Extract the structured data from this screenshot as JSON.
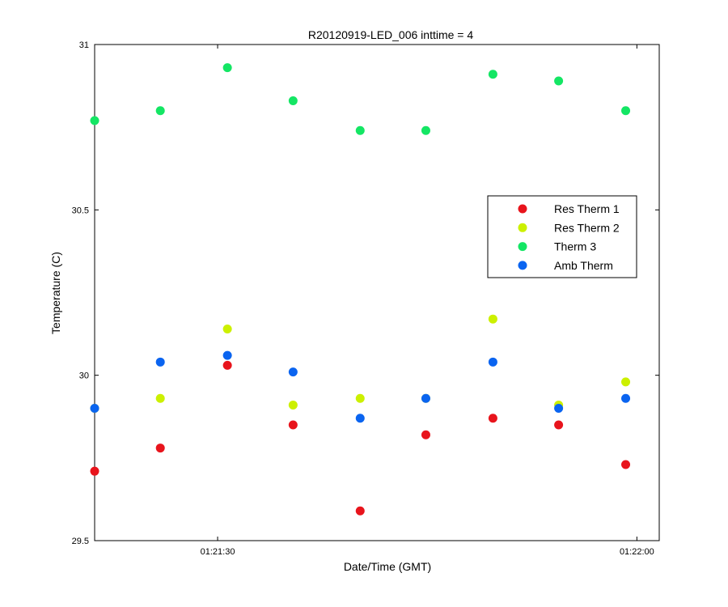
{
  "chart_data": {
    "type": "scatter",
    "title": "R20120919-LED_006 inttime = 4",
    "xlabel": "Date/Time (GMT)",
    "ylabel": "Temperature (C)",
    "xlim": [
      "01:21:21.2",
      "01:22:01.6"
    ],
    "ylim": [
      29.5,
      31
    ],
    "x_ticks": [
      {
        "value": "01:21:30",
        "label": "01:21:30"
      },
      {
        "value": "01:22:00",
        "label": "01:22:00"
      }
    ],
    "y_ticks": [
      {
        "value": 29.5,
        "label": "29.5"
      },
      {
        "value": 30,
        "label": "30"
      },
      {
        "value": 30.5,
        "label": "30.5"
      },
      {
        "value": 31,
        "label": "31"
      }
    ],
    "x": [
      "01:21:21.2",
      "01:21:25.9",
      "01:21:30.7",
      "01:21:35.4",
      "01:21:40.2",
      "01:21:44.9",
      "01:21:49.7",
      "01:21:54.4",
      "01:21:59.2",
      "01:21:60.0"
    ],
    "series": [
      {
        "name": "Res Therm 1",
        "color": "#e8141c",
        "values": [
          29.71,
          29.78,
          30.03,
          29.85,
          29.59,
          29.82,
          29.87,
          29.85,
          29.73,
          null
        ]
      },
      {
        "name": "Res Therm 2",
        "color": "#ccf000",
        "values": [
          29.9,
          29.93,
          30.14,
          29.91,
          29.93,
          29.93,
          30.17,
          29.91,
          29.98,
          null
        ]
      },
      {
        "name": "Therm 3",
        "color": "#14e664",
        "values": [
          30.77,
          30.8,
          30.93,
          30.83,
          30.74,
          30.74,
          30.91,
          30.89,
          30.8,
          null
        ]
      },
      {
        "name": "Amb Therm",
        "color": "#0a64f0",
        "values": [
          29.9,
          30.04,
          30.06,
          30.01,
          29.87,
          29.93,
          30.04,
          29.9,
          29.93,
          null
        ]
      }
    ],
    "legend_position": "right",
    "grid": false
  }
}
